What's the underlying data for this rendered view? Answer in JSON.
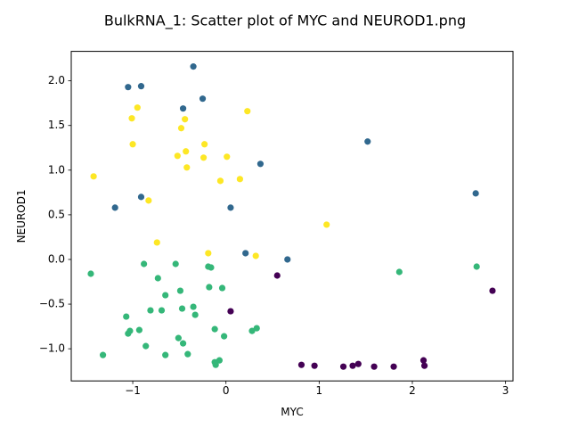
{
  "chart_data": {
    "type": "scatter",
    "title": "BulkRNA_1: Scatter plot of MYC and NEUROD1.png",
    "xlabel": "MYC",
    "ylabel": "NEUROD1",
    "xlim": [
      -1.66,
      3.08
    ],
    "ylim": [
      -1.36,
      2.33
    ],
    "xticks": [
      -1,
      0,
      1,
      2,
      3
    ],
    "yticks": [
      -1.0,
      -0.5,
      0.0,
      0.5,
      1.0,
      1.5,
      2.0
    ],
    "grid": false,
    "legend": "none",
    "series": [
      {
        "color": "#31688e",
        "points": [
          [
            -1.05,
            1.93
          ],
          [
            -0.91,
            1.94
          ],
          [
            -0.35,
            2.16
          ],
          [
            -0.25,
            1.8
          ],
          [
            -0.46,
            1.69
          ],
          [
            1.52,
            1.32
          ],
          [
            0.37,
            1.07
          ],
          [
            -0.91,
            0.7
          ],
          [
            -1.19,
            0.58
          ],
          [
            0.05,
            0.58
          ],
          [
            2.68,
            0.74
          ],
          [
            0.21,
            0.07
          ],
          [
            0.66,
            0.0
          ]
        ]
      },
      {
        "color": "#fde725",
        "points": [
          [
            -0.95,
            1.7
          ],
          [
            -1.01,
            1.58
          ],
          [
            0.23,
            1.66
          ],
          [
            -0.44,
            1.57
          ],
          [
            -0.48,
            1.47
          ],
          [
            -1.0,
            1.29
          ],
          [
            -0.23,
            1.29
          ],
          [
            -0.43,
            1.21
          ],
          [
            -0.52,
            1.16
          ],
          [
            -0.24,
            1.14
          ],
          [
            0.01,
            1.15
          ],
          [
            -0.42,
            1.03
          ],
          [
            -1.42,
            0.93
          ],
          [
            0.15,
            0.9
          ],
          [
            -0.06,
            0.88
          ],
          [
            -0.83,
            0.66
          ],
          [
            1.08,
            0.39
          ],
          [
            -0.74,
            0.19
          ],
          [
            -0.19,
            0.07
          ],
          [
            0.32,
            0.04
          ]
        ]
      },
      {
        "color": "#35b779",
        "points": [
          [
            -1.45,
            -0.16
          ],
          [
            -0.88,
            -0.05
          ],
          [
            -0.54,
            -0.05
          ],
          [
            -0.19,
            -0.08
          ],
          [
            -0.16,
            -0.09
          ],
          [
            1.86,
            -0.14
          ],
          [
            2.69,
            -0.08
          ],
          [
            -0.73,
            -0.21
          ],
          [
            -0.18,
            -0.31
          ],
          [
            -0.04,
            -0.32
          ],
          [
            -0.49,
            -0.35
          ],
          [
            -0.65,
            -0.4
          ],
          [
            -0.35,
            -0.53
          ],
          [
            -0.47,
            -0.55
          ],
          [
            -0.81,
            -0.57
          ],
          [
            -0.69,
            -0.57
          ],
          [
            -0.33,
            -0.62
          ],
          [
            -1.07,
            -0.64
          ],
          [
            0.33,
            -0.77
          ],
          [
            -0.12,
            -0.78
          ],
          [
            -0.93,
            -0.79
          ],
          [
            -1.03,
            -0.8
          ],
          [
            0.28,
            -0.8
          ],
          [
            -1.05,
            -0.83
          ],
          [
            -0.02,
            -0.86
          ],
          [
            -0.51,
            -0.88
          ],
          [
            -0.46,
            -0.94
          ],
          [
            -0.86,
            -0.97
          ],
          [
            -1.32,
            -1.07
          ],
          [
            -0.65,
            -1.07
          ],
          [
            -0.41,
            -1.06
          ],
          [
            -0.07,
            -1.13
          ],
          [
            -0.12,
            -1.15
          ],
          [
            -0.11,
            -1.18
          ]
        ]
      },
      {
        "color": "#440154",
        "points": [
          [
            0.55,
            -0.18
          ],
          [
            0.05,
            -0.58
          ],
          [
            2.86,
            -0.35
          ],
          [
            0.81,
            -1.18
          ],
          [
            0.95,
            -1.19
          ],
          [
            1.26,
            -1.2
          ],
          [
            1.36,
            -1.19
          ],
          [
            1.42,
            -1.17
          ],
          [
            1.59,
            -1.2
          ],
          [
            1.8,
            -1.2
          ],
          [
            2.12,
            -1.13
          ],
          [
            2.13,
            -1.19
          ]
        ]
      }
    ]
  }
}
